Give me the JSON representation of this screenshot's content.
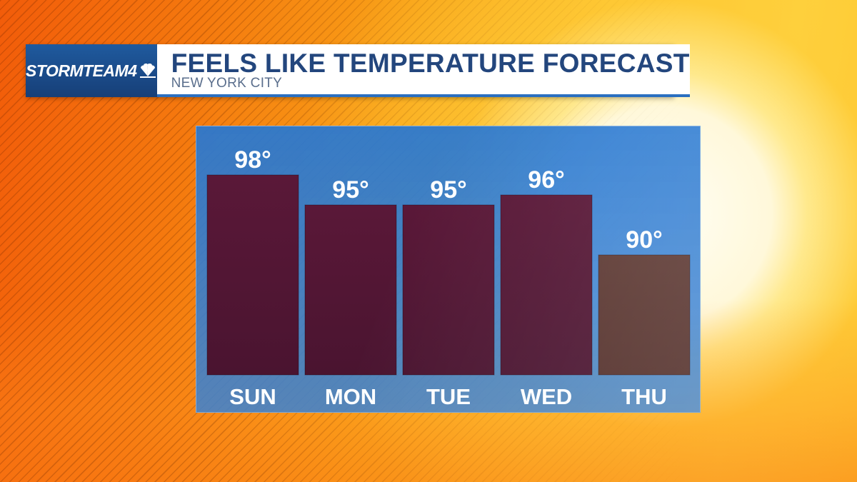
{
  "header": {
    "logo": "STORMTEAM4",
    "title": "FEELS LIKE TEMPERATURE FORECAST",
    "subtitle": "NEW YORK CITY"
  },
  "icons": {
    "logo_icon": "nbc-peacock-icon"
  },
  "chart_data": {
    "type": "bar",
    "title": "FEELS LIKE TEMPERATURE FORECAST",
    "subtitle": "NEW YORK CITY",
    "categories": [
      "SUN",
      "MON",
      "TUE",
      "WED",
      "THU"
    ],
    "values": [
      98,
      95,
      95,
      96,
      90
    ],
    "value_labels": [
      "98°",
      "95°",
      "95°",
      "96°",
      "90°"
    ],
    "units": "°F",
    "ylim": [
      78,
      100
    ],
    "grid": false,
    "legend": "none",
    "colors": {
      "bar_hot": "#5a1838",
      "bar_warm": "#5e3a34",
      "panel": "#2f7fd4",
      "label": "#ffffff"
    }
  }
}
